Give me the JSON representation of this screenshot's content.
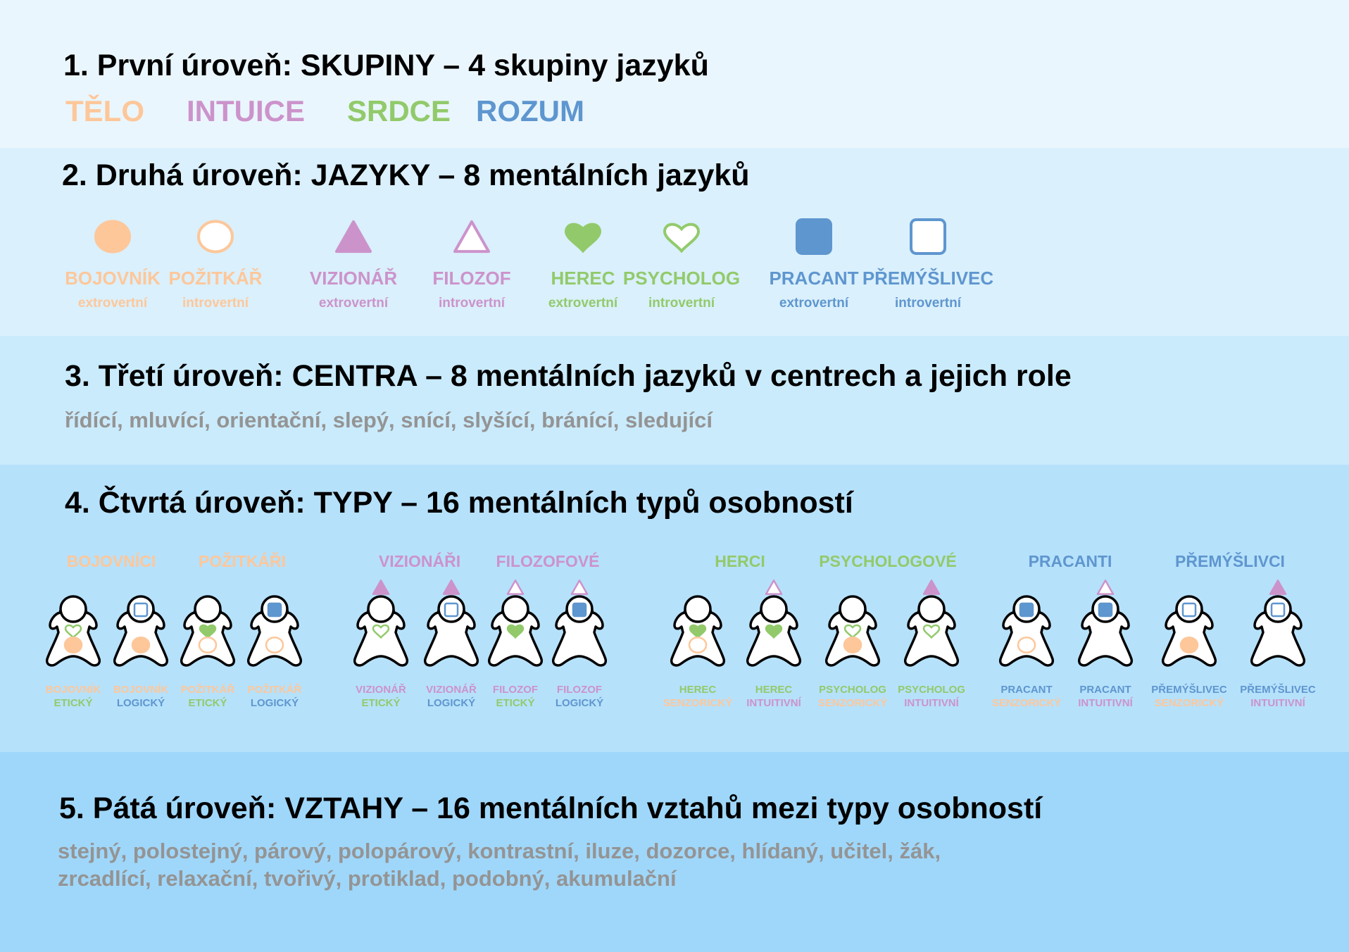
{
  "colors": {
    "telo": "#fdc79a",
    "intuice": "#cc93cb",
    "srdce": "#92ca6b",
    "rozum": "#5e96cf",
    "lead_gray": "#949494"
  },
  "level1": {
    "heading": "1. První úroveň: SKUPINY – 4 skupiny jazyků",
    "groups": [
      {
        "label": "TĚLO",
        "color": "#fdc79a"
      },
      {
        "label": "INTUICE",
        "color": "#cc93cb"
      },
      {
        "label": "SRDCE",
        "color": "#92ca6b"
      },
      {
        "label": "ROZUM",
        "color": "#5e96cf"
      }
    ]
  },
  "level2": {
    "heading": "2. Druhá úroveň: JAZYKY – 8 mentálních jazyků",
    "languages": [
      {
        "name": "BOJOVNÍK",
        "kind": "extrovertní",
        "shape": "circle",
        "filled": true,
        "color": "#fdc79a"
      },
      {
        "name": "POŽITKÁŘ",
        "kind": "introvertní",
        "shape": "circle",
        "filled": false,
        "color": "#fdc79a"
      },
      {
        "name": "VIZIONÁŘ",
        "kind": "extrovertní",
        "shape": "triangle",
        "filled": true,
        "color": "#cc93cb"
      },
      {
        "name": "FILOZOF",
        "kind": "introvertní",
        "shape": "triangle",
        "filled": false,
        "color": "#cc93cb"
      },
      {
        "name": "HEREC",
        "kind": "extrovertní",
        "shape": "heart",
        "filled": true,
        "color": "#92ca6b"
      },
      {
        "name": "PSYCHOLOG",
        "kind": "introvertní",
        "shape": "heart",
        "filled": false,
        "color": "#92ca6b"
      },
      {
        "name": "PRACANT",
        "kind": "extrovertní",
        "shape": "square",
        "filled": true,
        "color": "#5e96cf"
      },
      {
        "name": "PŘEMÝŠLIVEC",
        "kind": "introvertní",
        "shape": "square",
        "filled": false,
        "color": "#5e96cf"
      }
    ]
  },
  "level3": {
    "heading": "3. Třetí úroveň: CENTRA – 8 mentálních jazyků v centrech a jejich role",
    "roles": "řídící, mluvící, orientační, slepý, snící, slyšící, bránící, sledující"
  },
  "level4": {
    "heading": "4. Čtvrtá úroveň: TYPY – 16 mentálních typů osobností",
    "type_groups": [
      {
        "label": "BOJOVNÍCI",
        "color": "#fdc79a"
      },
      {
        "label": "POŽITKÁŘI",
        "color": "#fdc79a"
      },
      {
        "label": "VIZIONÁŘI",
        "color": "#cc93cb"
      },
      {
        "label": "FILOZOFOVÉ",
        "color": "#cc93cb"
      },
      {
        "label": "HERCI",
        "color": "#92ca6b"
      },
      {
        "label": "PSYCHOLOGOVÉ",
        "color": "#92ca6b"
      },
      {
        "label": "PRACANTI",
        "color": "#5e96cf"
      },
      {
        "label": "PŘEMÝŠLIVCI",
        "color": "#5e96cf"
      }
    ],
    "types": [
      {
        "line1": "BOJOVNÍK",
        "line2": "ETICKÝ",
        "color1": "#fdc79a",
        "color2": "#92ca6b",
        "head": null,
        "chest": "heart-o",
        "belly": "circle-f",
        "above": null
      },
      {
        "line1": "BOJOVNÍK",
        "line2": "LOGICKÝ",
        "color1": "#fdc79a",
        "color2": "#5e96cf",
        "head": "square-o",
        "chest": null,
        "belly": "circle-f",
        "above": null
      },
      {
        "line1": "POŽITKÁŘ",
        "line2": "ETICKÝ",
        "color1": "#fdc79a",
        "color2": "#92ca6b",
        "head": null,
        "chest": "heart-f",
        "belly": "circle-o",
        "above": null
      },
      {
        "line1": "POŽITKÁŘ",
        "line2": "LOGICKÝ",
        "color1": "#fdc79a",
        "color2": "#5e96cf",
        "head": "square-f",
        "chest": null,
        "belly": "circle-o",
        "above": null
      },
      {
        "line1": "VIZIONÁŘ",
        "line2": "ETICKÝ",
        "color1": "#cc93cb",
        "color2": "#92ca6b",
        "head": null,
        "chest": "heart-o",
        "belly": null,
        "above": "triangle-f"
      },
      {
        "line1": "VIZIONÁŘ",
        "line2": "LOGICKÝ",
        "color1": "#cc93cb",
        "color2": "#5e96cf",
        "head": "square-o",
        "chest": null,
        "belly": null,
        "above": "triangle-f"
      },
      {
        "line1": "FILOZOF",
        "line2": "ETICKÝ",
        "color1": "#cc93cb",
        "color2": "#92ca6b",
        "head": null,
        "chest": "heart-f",
        "belly": null,
        "above": "triangle-o"
      },
      {
        "line1": "FILOZOF",
        "line2": "LOGICKÝ",
        "color1": "#cc93cb",
        "color2": "#5e96cf",
        "head": "square-f",
        "chest": null,
        "belly": null,
        "above": "triangle-o"
      },
      {
        "line1": "HEREC",
        "line2": "SENZORICKÝ",
        "color1": "#92ca6b",
        "color2": "#fdc79a",
        "head": null,
        "chest": "heart-f",
        "belly": "circle-o",
        "above": null
      },
      {
        "line1": "HEREC",
        "line2": "INTUITIVNÍ",
        "color1": "#92ca6b",
        "color2": "#cc93cb",
        "head": null,
        "chest": "heart-f",
        "belly": null,
        "above": "triangle-o"
      },
      {
        "line1": "PSYCHOLOG",
        "line2": "SENZORICKÝ",
        "color1": "#92ca6b",
        "color2": "#fdc79a",
        "head": null,
        "chest": "heart-o",
        "belly": "circle-f",
        "above": null
      },
      {
        "line1": "PSYCHOLOG",
        "line2": "INTUITIVNÍ",
        "color1": "#92ca6b",
        "color2": "#cc93cb",
        "head": null,
        "chest": "heart-o",
        "belly": null,
        "above": "triangle-f"
      },
      {
        "line1": "PRACANT",
        "line2": "SENZORICKÝ",
        "color1": "#5e96cf",
        "color2": "#fdc79a",
        "head": "square-f",
        "chest": null,
        "belly": "circle-o",
        "above": null
      },
      {
        "line1": "PRACANT",
        "line2": "INTUITIVNÍ",
        "color1": "#5e96cf",
        "color2": "#cc93cb",
        "head": "square-f",
        "chest": null,
        "belly": null,
        "above": "triangle-o"
      },
      {
        "line1": "PŘEMÝŠLIVEC",
        "line2": "SENZORICKÝ",
        "color1": "#5e96cf",
        "color2": "#fdc79a",
        "head": "square-o",
        "chest": null,
        "belly": "circle-f",
        "above": null
      },
      {
        "line1": "PŘEMÝŠLIVEC",
        "line2": "INTUITIVNÍ",
        "color1": "#5e96cf",
        "color2": "#cc93cb",
        "head": "square-o",
        "chest": null,
        "belly": null,
        "above": "triangle-f"
      }
    ]
  },
  "level5": {
    "heading": "5. Pátá úroveň: VZTAHY – 16 mentálních vztahů mezi typy osobností",
    "line1": "stejný, polostejný, párový, polopárový, kontrastní, iluze, dozorce, hlídaný, učitel, žák,",
    "line2": "zrcadlící, relaxační, tvořivý, protiklad, podobný, akumulační"
  }
}
